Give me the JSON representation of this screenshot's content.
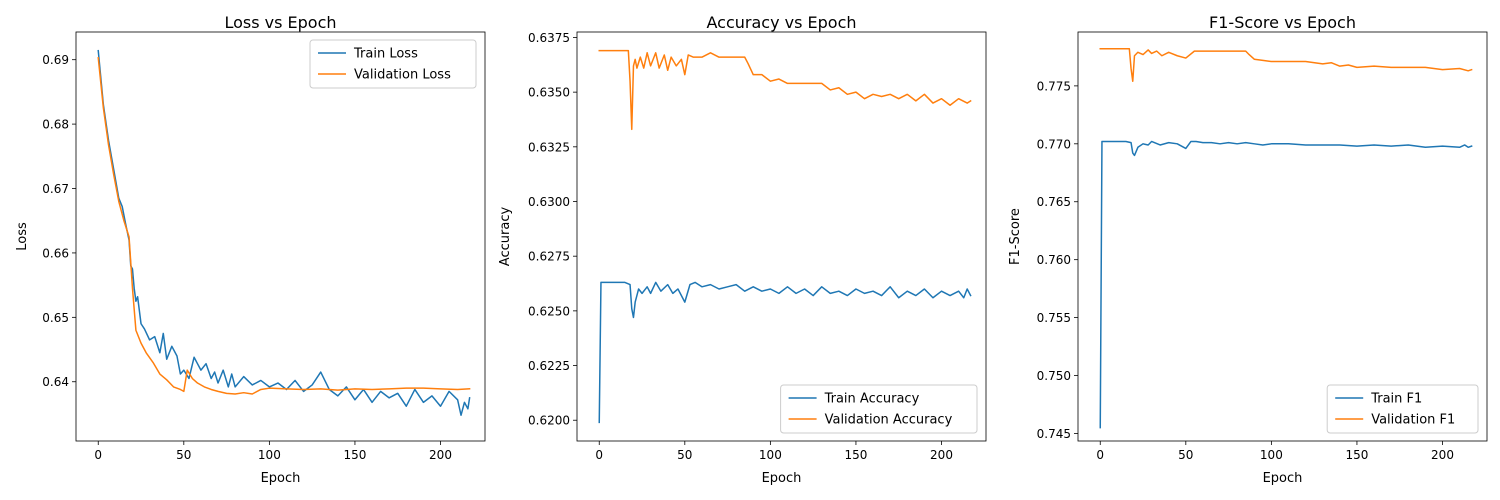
{
  "figure": {
    "background": "#ffffff"
  },
  "colors": {
    "train": "#1f77b4",
    "validation": "#ff7f0e"
  },
  "chart_data": [
    {
      "type": "line",
      "title": "Loss vs Epoch",
      "xlabel": "Epoch",
      "ylabel": "Loss",
      "xlim": [
        -13,
        226
      ],
      "ylim": [
        0.6308,
        0.6943
      ],
      "xticks": [
        0,
        50,
        100,
        150,
        200
      ],
      "xtick_labels": [
        "0",
        "50",
        "100",
        "150",
        "200"
      ],
      "yticks": [
        0.64,
        0.65,
        0.66,
        0.67,
        0.68,
        0.69
      ],
      "ytick_labels": [
        "0.64",
        "0.65",
        "0.66",
        "0.67",
        "0.68",
        "0.69"
      ],
      "legend": "upper right",
      "series": [
        {
          "name": "Train Loss",
          "color": "#1f77b4",
          "x": [
            0,
            3,
            6,
            9,
            12,
            14,
            16,
            18,
            19,
            20,
            21,
            22,
            23,
            25,
            27,
            30,
            33,
            36,
            38,
            40,
            43,
            46,
            48,
            50,
            53,
            56,
            58,
            60,
            63,
            66,
            68,
            70,
            73,
            76,
            78,
            80,
            85,
            90,
            95,
            100,
            105,
            110,
            115,
            120,
            125,
            130,
            135,
            140,
            145,
            150,
            155,
            160,
            165,
            170,
            175,
            180,
            185,
            190,
            195,
            200,
            205,
            210,
            212,
            214,
            216,
            217
          ],
          "y": [
            0.6914,
            0.683,
            0.6775,
            0.673,
            0.6685,
            0.6672,
            0.6645,
            0.662,
            0.658,
            0.6575,
            0.6545,
            0.6525,
            0.6532,
            0.649,
            0.6482,
            0.6465,
            0.647,
            0.6445,
            0.6475,
            0.6435,
            0.6455,
            0.644,
            0.6412,
            0.6418,
            0.6405,
            0.6438,
            0.6428,
            0.6418,
            0.6428,
            0.6405,
            0.6415,
            0.6398,
            0.6418,
            0.6392,
            0.6412,
            0.6392,
            0.6408,
            0.6395,
            0.6402,
            0.6392,
            0.6398,
            0.6388,
            0.6402,
            0.6385,
            0.6395,
            0.6415,
            0.6388,
            0.6378,
            0.6392,
            0.6372,
            0.6388,
            0.6368,
            0.6385,
            0.6375,
            0.6382,
            0.6362,
            0.6388,
            0.6368,
            0.6378,
            0.6362,
            0.6385,
            0.6372,
            0.6348,
            0.6368,
            0.6358,
            0.6375
          ]
        },
        {
          "name": "Validation Loss",
          "color": "#ff7f0e",
          "x": [
            0,
            3,
            6,
            9,
            12,
            15,
            18,
            20,
            22,
            25,
            28,
            32,
            36,
            40,
            44,
            48,
            50,
            52,
            55,
            58,
            62,
            66,
            70,
            75,
            80,
            85,
            90,
            95,
            100,
            110,
            120,
            130,
            140,
            150,
            160,
            170,
            180,
            190,
            200,
            210,
            217
          ],
          "y": [
            0.6903,
            0.6825,
            0.6768,
            0.6722,
            0.668,
            0.665,
            0.6625,
            0.6545,
            0.648,
            0.646,
            0.6445,
            0.643,
            0.6412,
            0.6403,
            0.6392,
            0.6388,
            0.6385,
            0.6418,
            0.6405,
            0.6398,
            0.6392,
            0.6388,
            0.6385,
            0.6382,
            0.6381,
            0.6383,
            0.6381,
            0.6388,
            0.639,
            0.6389,
            0.6388,
            0.6389,
            0.6387,
            0.6389,
            0.6388,
            0.6389,
            0.639,
            0.639,
            0.6389,
            0.6388,
            0.6389
          ]
        }
      ]
    },
    {
      "type": "line",
      "title": "Accuracy vs Epoch",
      "xlabel": "Epoch",
      "ylabel": "Accuracy",
      "xlim": [
        -13,
        226
      ],
      "ylim": [
        0.61905,
        0.63775
      ],
      "xticks": [
        0,
        50,
        100,
        150,
        200
      ],
      "xtick_labels": [
        "0",
        "50",
        "100",
        "150",
        "200"
      ],
      "yticks": [
        0.62,
        0.6225,
        0.625,
        0.6275,
        0.63,
        0.6325,
        0.635,
        0.6375
      ],
      "ytick_labels": [
        "0.6200",
        "0.6225",
        "0.6250",
        "0.6275",
        "0.6300",
        "0.6325",
        "0.6350",
        "0.6375"
      ],
      "legend": "lower right",
      "series": [
        {
          "name": "Train Accuracy",
          "color": "#1f77b4",
          "x": [
            0,
            1,
            5,
            10,
            15,
            18,
            19,
            20,
            21,
            23,
            25,
            28,
            30,
            33,
            36,
            40,
            43,
            46,
            50,
            53,
            56,
            60,
            65,
            70,
            75,
            80,
            85,
            90,
            95,
            100,
            105,
            110,
            115,
            120,
            125,
            130,
            135,
            140,
            145,
            150,
            155,
            160,
            165,
            170,
            175,
            180,
            185,
            190,
            195,
            200,
            205,
            210,
            213,
            215,
            217
          ],
          "y": [
            0.6199,
            0.6263,
            0.6263,
            0.6263,
            0.6263,
            0.6262,
            0.6251,
            0.6247,
            0.6254,
            0.626,
            0.6258,
            0.6261,
            0.6258,
            0.6263,
            0.6259,
            0.6262,
            0.6258,
            0.626,
            0.6254,
            0.6262,
            0.6263,
            0.6261,
            0.6262,
            0.626,
            0.6261,
            0.6262,
            0.6259,
            0.6261,
            0.6259,
            0.626,
            0.6258,
            0.6261,
            0.6258,
            0.626,
            0.6257,
            0.6261,
            0.6258,
            0.6259,
            0.6257,
            0.626,
            0.6258,
            0.6259,
            0.6257,
            0.6261,
            0.6256,
            0.6259,
            0.6257,
            0.626,
            0.6256,
            0.6259,
            0.6257,
            0.6259,
            0.6256,
            0.626,
            0.6257
          ]
        },
        {
          "name": "Validation Accuracy",
          "color": "#ff7f0e",
          "x": [
            0,
            5,
            10,
            15,
            17,
            18,
            19,
            20,
            21,
            22,
            24,
            26,
            28,
            30,
            33,
            35,
            38,
            40,
            42,
            45,
            48,
            50,
            52,
            55,
            60,
            65,
            70,
            75,
            80,
            85,
            87,
            90,
            95,
            100,
            105,
            110,
            115,
            120,
            125,
            130,
            135,
            140,
            145,
            150,
            155,
            160,
            165,
            170,
            175,
            180,
            185,
            190,
            195,
            200,
            205,
            210,
            215,
            217
          ],
          "y": [
            0.6369,
            0.6369,
            0.6369,
            0.6369,
            0.6369,
            0.6355,
            0.6333,
            0.6362,
            0.6365,
            0.6361,
            0.6366,
            0.6361,
            0.6368,
            0.6362,
            0.6368,
            0.6361,
            0.6367,
            0.636,
            0.6366,
            0.6362,
            0.6365,
            0.6358,
            0.6367,
            0.6366,
            0.6366,
            0.6368,
            0.6366,
            0.6366,
            0.6366,
            0.6366,
            0.6363,
            0.6358,
            0.6358,
            0.6355,
            0.6356,
            0.6354,
            0.6354,
            0.6354,
            0.6354,
            0.6354,
            0.6351,
            0.6352,
            0.6349,
            0.635,
            0.6347,
            0.6349,
            0.6348,
            0.6349,
            0.6347,
            0.6349,
            0.6346,
            0.6349,
            0.6345,
            0.6347,
            0.6344,
            0.6347,
            0.6345,
            0.6346
          ]
        }
      ]
    },
    {
      "type": "line",
      "title": "F1-Score vs Epoch",
      "xlabel": "Epoch",
      "ylabel": "F1-Score",
      "xlim": [
        -13,
        226
      ],
      "ylim": [
        0.74435,
        0.77965
      ],
      "xticks": [
        0,
        50,
        100,
        150,
        200
      ],
      "xtick_labels": [
        "0",
        "50",
        "100",
        "150",
        "200"
      ],
      "yticks": [
        0.745,
        0.75,
        0.755,
        0.76,
        0.765,
        0.77,
        0.775
      ],
      "ytick_labels": [
        "0.745",
        "0.750",
        "0.755",
        "0.760",
        "0.765",
        "0.770",
        "0.775"
      ],
      "legend": "lower right",
      "series": [
        {
          "name": "Train F1",
          "color": "#1f77b4",
          "x": [
            0,
            1,
            5,
            10,
            15,
            18,
            19,
            20,
            22,
            25,
            28,
            30,
            35,
            40,
            45,
            50,
            53,
            56,
            60,
            65,
            70,
            75,
            80,
            85,
            90,
            95,
            100,
            110,
            120,
            130,
            140,
            150,
            160,
            170,
            180,
            190,
            200,
            210,
            213,
            215,
            217
          ],
          "y": [
            0.7455,
            0.7702,
            0.7702,
            0.7702,
            0.7702,
            0.7701,
            0.7692,
            0.769,
            0.7697,
            0.77,
            0.7699,
            0.7702,
            0.7699,
            0.7701,
            0.77,
            0.7696,
            0.7702,
            0.7702,
            0.7701,
            0.7701,
            0.77,
            0.7701,
            0.77,
            0.7701,
            0.77,
            0.7699,
            0.77,
            0.77,
            0.7699,
            0.7699,
            0.7699,
            0.7698,
            0.7699,
            0.7698,
            0.7699,
            0.7697,
            0.7698,
            0.7697,
            0.7699,
            0.7697,
            0.7698
          ]
        },
        {
          "name": "Validation F1",
          "color": "#ff7f0e",
          "x": [
            0,
            5,
            10,
            15,
            17,
            18,
            19,
            20,
            22,
            25,
            28,
            30,
            33,
            36,
            40,
            45,
            50,
            55,
            60,
            70,
            80,
            85,
            87,
            90,
            95,
            100,
            110,
            120,
            130,
            135,
            140,
            145,
            150,
            160,
            170,
            180,
            190,
            200,
            210,
            215,
            217
          ],
          "y": [
            0.7782,
            0.7782,
            0.7782,
            0.7782,
            0.7782,
            0.7765,
            0.7754,
            0.7776,
            0.7779,
            0.7777,
            0.7781,
            0.7778,
            0.778,
            0.7776,
            0.7779,
            0.7776,
            0.7774,
            0.778,
            0.778,
            0.778,
            0.778,
            0.778,
            0.7777,
            0.7773,
            0.7772,
            0.7771,
            0.7771,
            0.7771,
            0.7769,
            0.777,
            0.7767,
            0.7768,
            0.7766,
            0.7767,
            0.7766,
            0.7766,
            0.7766,
            0.7764,
            0.7765,
            0.7763,
            0.7764
          ]
        }
      ]
    }
  ]
}
